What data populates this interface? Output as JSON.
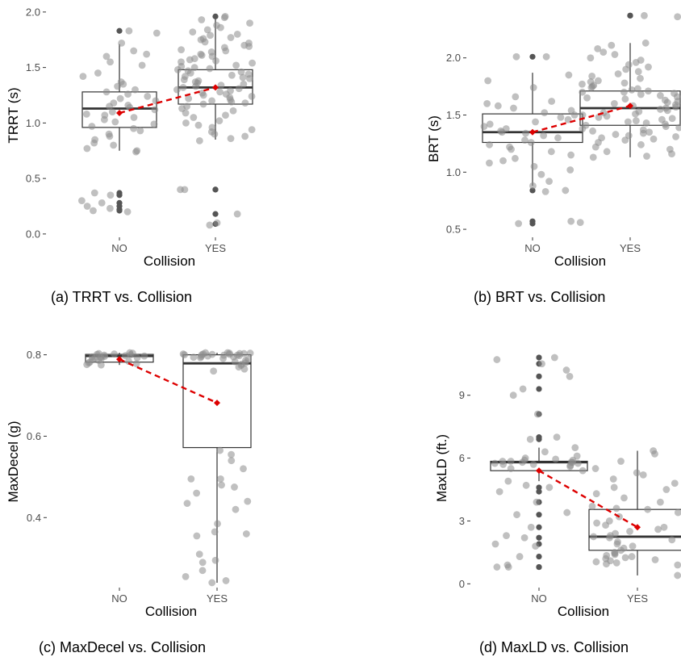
{
  "colors": {
    "background": "#ffffff",
    "box_line": "#333333",
    "whisker": "#333333",
    "median": "#333333",
    "point": "#8c8c8c",
    "outlier": "#555555",
    "mean_line": "#dd0000",
    "tick_text": "#4d4d4d"
  },
  "chart_data": [
    {
      "type": "box",
      "caption": "(a) TRRT vs. Collision",
      "xlabel": "Collision",
      "ylabel": "TRRT (s)",
      "categories": [
        "NO",
        "YES"
      ],
      "yticks": [
        0.0,
        0.5,
        1.0,
        1.5,
        2.0
      ],
      "ytick_labels": [
        "0.0",
        "0.5",
        "1.0",
        "1.5",
        "2.0"
      ],
      "ylim": [
        -0.03,
        2.05
      ],
      "grid": false,
      "boxes": [
        {
          "category": "NO",
          "q1": 0.96,
          "median": 1.13,
          "q3": 1.28,
          "whisker_low": 0.75,
          "whisker_high": 1.71,
          "outliers": [
            1.83,
            0.37,
            0.35,
            0.28,
            0.25,
            0.22,
            0.21
          ]
        },
        {
          "category": "YES",
          "q1": 1.17,
          "median": 1.32,
          "q3": 1.48,
          "whisker_low": 0.85,
          "whisker_high": 1.96,
          "outliers": [
            1.96,
            0.4,
            0.4,
            0.18,
            0.09
          ]
        }
      ],
      "means": [
        1.09,
        1.32
      ],
      "jitter": [
        {
          "category": "NO",
          "values": [
            1.83,
            1.81,
            1.72,
            1.65,
            1.62,
            1.6,
            1.55,
            1.52,
            1.45,
            1.42,
            1.37,
            1.35,
            1.33,
            1.3,
            1.28,
            1.26,
            1.24,
            1.22,
            1.2,
            1.18,
            1.16,
            1.15,
            1.14,
            1.12,
            1.1,
            1.08,
            1.07,
            1.05,
            1.03,
            1.01,
            0.99,
            0.97,
            0.95,
            0.93,
            0.9,
            0.88,
            0.85,
            0.82,
            0.8,
            0.77,
            0.75,
            0.74,
            0.37,
            0.35,
            0.3,
            0.28,
            0.25,
            0.23,
            0.21,
            0.2
          ]
        },
        {
          "category": "YES",
          "values": [
            1.96,
            1.95,
            1.93,
            1.9,
            1.88,
            1.86,
            1.84,
            1.82,
            1.8,
            1.79,
            1.77,
            1.76,
            1.75,
            1.73,
            1.72,
            1.7,
            1.69,
            1.68,
            1.66,
            1.65,
            1.64,
            1.62,
            1.61,
            1.6,
            1.58,
            1.57,
            1.56,
            1.55,
            1.54,
            1.52,
            1.51,
            1.5,
            1.49,
            1.48,
            1.47,
            1.46,
            1.45,
            1.44,
            1.43,
            1.42,
            1.41,
            1.4,
            1.39,
            1.38,
            1.37,
            1.36,
            1.35,
            1.34,
            1.33,
            1.32,
            1.31,
            1.3,
            1.29,
            1.28,
            1.27,
            1.26,
            1.25,
            1.24,
            1.23,
            1.22,
            1.21,
            1.2,
            1.19,
            1.18,
            1.17,
            1.15,
            1.13,
            1.11,
            1.09,
            1.07,
            1.05,
            1.02,
            1.0,
            0.98,
            0.96,
            0.94,
            0.92,
            0.9,
            0.88,
            0.86,
            0.84,
            0.4,
            0.4,
            0.18,
            0.1,
            0.08
          ]
        }
      ]
    },
    {
      "type": "box",
      "caption": "(b) BRT vs. Collision",
      "xlabel": "Collision",
      "ylabel": "BRT (s)",
      "categories": [
        "NO",
        "YES"
      ],
      "yticks": [
        0.5,
        1.0,
        1.5,
        2.0
      ],
      "ytick_labels": [
        "0.5",
        "1.0",
        "1.5",
        "2.0"
      ],
      "ylim": [
        0.43,
        2.45
      ],
      "grid": false,
      "boxes": [
        {
          "category": "NO",
          "q1": 1.26,
          "median": 1.35,
          "q3": 1.51,
          "whisker_low": 0.88,
          "whisker_high": 1.87,
          "outliers": [
            2.01,
            0.84,
            0.57,
            0.55
          ]
        },
        {
          "category": "YES",
          "q1": 1.41,
          "median": 1.56,
          "q3": 1.71,
          "whisker_low": 1.13,
          "whisker_high": 2.13,
          "outliers": [
            2.37,
            2.37
          ]
        }
      ],
      "means": [
        1.35,
        1.58
      ],
      "jitter": [
        {
          "category": "NO",
          "values": [
            2.01,
            2.01,
            1.85,
            1.8,
            1.74,
            1.7,
            1.66,
            1.62,
            1.6,
            1.58,
            1.56,
            1.54,
            1.52,
            1.5,
            1.48,
            1.46,
            1.44,
            1.42,
            1.4,
            1.38,
            1.36,
            1.35,
            1.34,
            1.32,
            1.3,
            1.28,
            1.26,
            1.24,
            1.22,
            1.2,
            1.18,
            1.15,
            1.12,
            1.1,
            1.08,
            1.05,
            1.02,
            0.98,
            0.92,
            0.88,
            0.84,
            0.83,
            0.57,
            0.56,
            0.55
          ]
        },
        {
          "category": "YES",
          "values": [
            2.37,
            2.36,
            2.13,
            2.11,
            2.08,
            2.05,
            2.03,
            2.0,
            1.98,
            1.96,
            1.94,
            1.92,
            1.9,
            1.88,
            1.86,
            1.84,
            1.82,
            1.8,
            1.79,
            1.78,
            1.77,
            1.76,
            1.75,
            1.74,
            1.73,
            1.72,
            1.71,
            1.7,
            1.69,
            1.68,
            1.67,
            1.66,
            1.65,
            1.64,
            1.63,
            1.62,
            1.61,
            1.6,
            1.59,
            1.58,
            1.57,
            1.56,
            1.55,
            1.54,
            1.53,
            1.52,
            1.51,
            1.5,
            1.49,
            1.48,
            1.47,
            1.46,
            1.45,
            1.44,
            1.43,
            1.42,
            1.41,
            1.4,
            1.39,
            1.38,
            1.37,
            1.36,
            1.35,
            1.34,
            1.33,
            1.32,
            1.31,
            1.3,
            1.29,
            1.28,
            1.26,
            1.24,
            1.22,
            1.2,
            1.18,
            1.16,
            1.14,
            1.13
          ]
        }
      ]
    },
    {
      "type": "box",
      "caption": "(c) MaxDecel vs. Collision",
      "xlabel": "Collision",
      "ylabel": "MaxDecel (g)",
      "categories": [
        "NO",
        "YES"
      ],
      "yticks": [
        0.4,
        0.6,
        0.8
      ],
      "ytick_labels": [
        "0.4",
        "0.6",
        "0.8"
      ],
      "ylim": [
        0.228,
        0.819
      ],
      "grid": false,
      "boxes": [
        {
          "category": "NO",
          "q1": 0.782,
          "median": 0.797,
          "q3": 0.801,
          "whisker_low": 0.775,
          "whisker_high": 0.805,
          "outliers": []
        },
        {
          "category": "YES",
          "q1": 0.572,
          "median": 0.779,
          "q3": 0.8,
          "whisker_low": 0.24,
          "whisker_high": 0.805,
          "outliers": []
        }
      ],
      "means": [
        0.789,
        0.682
      ],
      "jitter": [
        {
          "category": "NO",
          "values": [
            0.805,
            0.804,
            0.803,
            0.802,
            0.801,
            0.8,
            0.799,
            0.798,
            0.797,
            0.796,
            0.795,
            0.794,
            0.793,
            0.792,
            0.79,
            0.788,
            0.786,
            0.784,
            0.782,
            0.78,
            0.778,
            0.776,
            0.775
          ]
        },
        {
          "category": "YES",
          "values": [
            0.805,
            0.805,
            0.804,
            0.804,
            0.803,
            0.803,
            0.802,
            0.802,
            0.801,
            0.801,
            0.8,
            0.8,
            0.799,
            0.799,
            0.798,
            0.797,
            0.796,
            0.795,
            0.794,
            0.793,
            0.791,
            0.789,
            0.786,
            0.783,
            0.78,
            0.777,
            0.774,
            0.77,
            0.765,
            0.76,
            0.565,
            0.555,
            0.54,
            0.52,
            0.495,
            0.495,
            0.48,
            0.475,
            0.46,
            0.44,
            0.435,
            0.42,
            0.385,
            0.365,
            0.36,
            0.355,
            0.31,
            0.295,
            0.29,
            0.27,
            0.255,
            0.245,
            0.24
          ]
        }
      ]
    },
    {
      "type": "box",
      "caption": "(d) MaxLD vs. Collision",
      "xlabel": "Collision",
      "ylabel": "MaxLD (ft.)",
      "categories": [
        "NO",
        "YES"
      ],
      "yticks": [
        0,
        3,
        6,
        9
      ],
      "ytick_labels": [
        "0",
        "3",
        "6",
        "9"
      ],
      "ylim": [
        -0.18,
        11.3
      ],
      "grid": false,
      "boxes": [
        {
          "category": "NO",
          "q1": 5.4,
          "median": 5.8,
          "q3": 5.85,
          "whisker_low": 4.9,
          "whisker_high": 6.5,
          "outliers": [
            10.8,
            10.5,
            9.9,
            9.3,
            8.1,
            7.0,
            6.9,
            4.6,
            4.4,
            3.9,
            3.3,
            2.7,
            2.2,
            1.9,
            1.3,
            0.8,
            0.8
          ]
        },
        {
          "category": "YES",
          "q1": 1.6,
          "median": 2.25,
          "q3": 3.55,
          "whisker_low": 0.4,
          "whisker_high": 6.35,
          "outliers": []
        }
      ],
      "means": [
        5.4,
        2.7
      ],
      "jitter": [
        {
          "category": "NO",
          "values": [
            10.8,
            10.7,
            10.5,
            10.2,
            9.9,
            9.3,
            9.0,
            8.1,
            7.0,
            6.9,
            6.5,
            6.3,
            6.1,
            6.0,
            5.95,
            5.9,
            5.9,
            5.85,
            5.85,
            5.8,
            5.8,
            5.8,
            5.75,
            5.75,
            5.7,
            5.7,
            5.65,
            5.6,
            5.5,
            5.4,
            4.9,
            4.7,
            4.6,
            4.4,
            3.9,
            3.4,
            3.3,
            2.7,
            2.3,
            2.2,
            1.9,
            1.8,
            1.3,
            0.9,
            0.8,
            0.8
          ]
        },
        {
          "category": "YES",
          "values": [
            6.35,
            6.2,
            5.85,
            5.5,
            5.3,
            5.2,
            5.0,
            4.8,
            4.6,
            4.5,
            4.3,
            4.1,
            3.9,
            3.7,
            3.6,
            3.55,
            3.4,
            3.2,
            3.0,
            2.9,
            2.8,
            2.7,
            2.6,
            2.5,
            2.4,
            2.3,
            2.25,
            2.2,
            2.1,
            2.0,
            1.9,
            1.8,
            1.7,
            1.6,
            1.5,
            1.45,
            1.4,
            1.35,
            1.3,
            1.25,
            1.2,
            1.15,
            1.1,
            1.05,
            1.0,
            0.95,
            0.9,
            0.4
          ]
        }
      ]
    }
  ]
}
